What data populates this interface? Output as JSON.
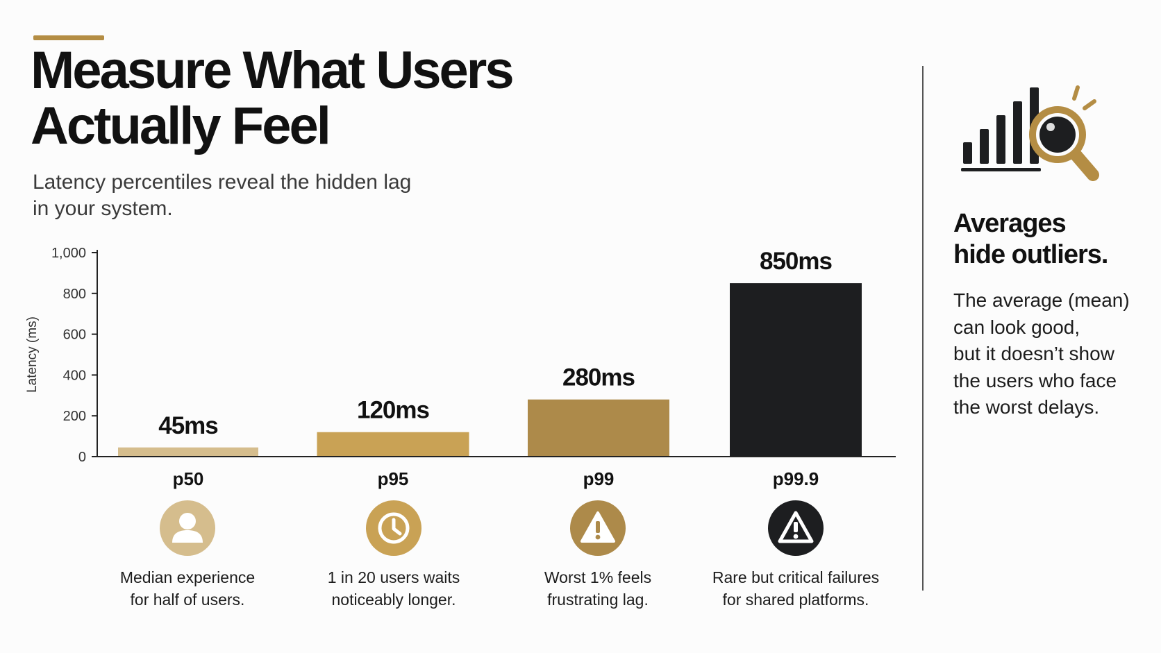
{
  "header": {
    "title_lines": [
      "Measure What Users",
      "Actually Feel"
    ],
    "subtitle_lines": [
      "Latency percentiles reveal the hidden lag",
      "in your system."
    ]
  },
  "chart_data": {
    "type": "bar",
    "categories": [
      "p50",
      "p95",
      "p99",
      "p99.9"
    ],
    "values": [
      45,
      120,
      280,
      850
    ],
    "data_labels": [
      "45ms",
      "120ms",
      "280ms",
      "850ms"
    ],
    "xlabel": "",
    "ylabel": "Latency (ms)",
    "ylim": [
      0,
      1000
    ],
    "yticks": [
      0,
      200,
      400,
      600,
      800,
      1000
    ],
    "ytick_labels": [
      "0",
      "200",
      "400",
      "600",
      "800",
      "1,000"
    ],
    "grid": false,
    "colors": [
      "#d5bd8d",
      "#c9a255",
      "#ad8a4a",
      "#1d1e20"
    ]
  },
  "percentiles": [
    {
      "icon": "user-icon",
      "icon_color": "#d5bd8d",
      "desc_lines": [
        "Median experience",
        "for half of users."
      ]
    },
    {
      "icon": "clock-icon",
      "icon_color": "#c9a255",
      "desc_lines": [
        "1 in 20 users waits",
        "noticeably longer."
      ]
    },
    {
      "icon": "warning-icon",
      "icon_color": "#ad8a4a",
      "desc_lines": [
        "Worst 1% feels",
        "frustrating lag."
      ]
    },
    {
      "icon": "alert-icon",
      "icon_color": "#1d1e20",
      "desc_lines": [
        "Rare but critical failures",
        "for shared platforms."
      ]
    }
  ],
  "sidebar": {
    "icon": "magnified-bar-chart-icon",
    "heading_lines": [
      "Averages",
      "hide outliers."
    ],
    "text_lines": [
      "The average (mean)",
      "can look good,",
      "but it doesn’t show",
      "the users who face",
      "the worst delays."
    ]
  },
  "colors": {
    "accent": "#b48d44",
    "text": "#111111",
    "dark": "#1d1e20"
  }
}
